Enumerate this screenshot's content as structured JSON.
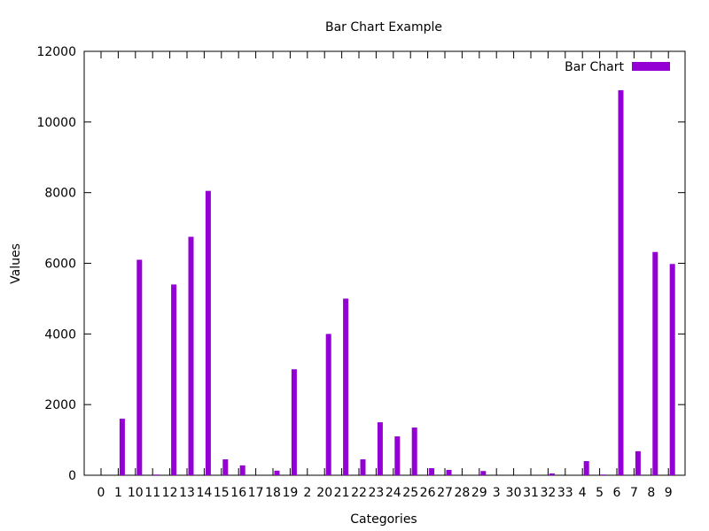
{
  "chart_data": {
    "type": "bar",
    "title": "Bar Chart Example",
    "xlabel": "Categories",
    "ylabel": "Values",
    "ylim": [
      0,
      12000
    ],
    "yticks": [
      0,
      2000,
      4000,
      6000,
      8000,
      10000,
      12000
    ],
    "legend_position": "top-right",
    "grid": false,
    "categories": [
      "0",
      "1",
      "10",
      "11",
      "12",
      "13",
      "14",
      "15",
      "16",
      "17",
      "18",
      "19",
      "2",
      "20",
      "21",
      "22",
      "23",
      "24",
      "25",
      "26",
      "27",
      "28",
      "29",
      "3",
      "30",
      "31",
      "32",
      "33",
      "4",
      "5",
      "6",
      "7",
      "8",
      "9"
    ],
    "series": [
      {
        "name": "Bar Chart",
        "color": "#9400d3",
        "values": [
          0,
          1600,
          6100,
          20,
          5400,
          6750,
          8050,
          450,
          280,
          0,
          130,
          3000,
          0,
          4000,
          5000,
          450,
          1500,
          1100,
          1350,
          200,
          150,
          0,
          120,
          0,
          0,
          0,
          50,
          0,
          400,
          20,
          10900,
          680,
          6320,
          5980
        ]
      }
    ]
  }
}
